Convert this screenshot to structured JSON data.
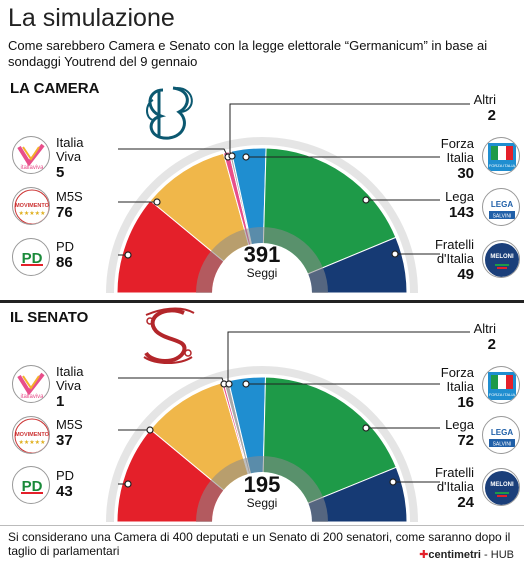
{
  "header": {
    "title": "La simulazione",
    "subtitle": "Come sarebbero Camera e Senato con la legge elettorale “Germanicum” in base ai sondaggi Youtrend del 9 gennaio"
  },
  "footer": {
    "note": "Si considerano una Camera di 400 deputati e un Senato di 200 senatori, come saranno dopo il taglio di parlamentari",
    "brand_main": "centimetri",
    "brand_sep": " - ",
    "brand_hub": "HUB"
  },
  "colors": {
    "pd": "#e4202a",
    "m5s": "#f0b74a",
    "iv": "#e84e8a",
    "altri": "#a9a9a9",
    "fi": "#1f8ed0",
    "lega": "#1e9a48",
    "fdi": "#163a74",
    "inner": "#8a8a8a",
    "ring": "#e5e5e5"
  },
  "chart_data": [
    {
      "type": "pie",
      "title": "LA CAMERA",
      "total_label": "391",
      "total_unit": "Seggi",
      "slices": [
        {
          "key": "pd",
          "label": "PD",
          "value": 86
        },
        {
          "key": "m5s",
          "label": "M5S",
          "value": 76
        },
        {
          "key": "iv",
          "label": "Italia Viva",
          "value": 5
        },
        {
          "key": "altri",
          "label": "Altri",
          "value": 2
        },
        {
          "key": "fi",
          "label": "Forza Italia",
          "value": 30
        },
        {
          "key": "lega",
          "label": "Lega",
          "value": 143
        },
        {
          "key": "fdi",
          "label": "Fratelli d'Italia",
          "value": 49
        }
      ]
    },
    {
      "type": "pie",
      "title": "IL SENATO",
      "total_label": "195",
      "total_unit": "Seggi",
      "slices": [
        {
          "key": "pd",
          "label": "PD",
          "value": 43
        },
        {
          "key": "m5s",
          "label": "M5S",
          "value": 37
        },
        {
          "key": "iv",
          "label": "Italia Viva",
          "value": 1
        },
        {
          "key": "altri",
          "label": "Altri",
          "value": 2
        },
        {
          "key": "fi",
          "label": "Forza Italia",
          "value": 16
        },
        {
          "key": "lega",
          "label": "Lega",
          "value": 72
        },
        {
          "key": "fdi",
          "label": "Fratelli d'Italia",
          "value": 24
        }
      ]
    }
  ],
  "camera": {
    "iv_l1": "Italia",
    "iv_l2": "Viva",
    "iv_v": "5",
    "m5s_l": "M5S",
    "m5s_v": "76",
    "pd_l": "PD",
    "pd_v": "86",
    "altri_l": "Altri",
    "altri_v": "2",
    "fi_l1": "Forza",
    "fi_l2": "Italia",
    "fi_v": "30",
    "lega_l": "Lega",
    "lega_v": "143",
    "fdi_l1": "Fratelli",
    "fdi_l2": "d'Italia",
    "fdi_v": "49"
  },
  "senato": {
    "iv_l1": "Italia",
    "iv_l2": "Viva",
    "iv_v": "1",
    "m5s_l": "M5S",
    "m5s_v": "37",
    "pd_l": "PD",
    "pd_v": "43",
    "altri_l": "Altri",
    "altri_v": "2",
    "fi_l1": "Forza",
    "fi_l2": "Italia",
    "fi_v": "16",
    "lega_l": "Lega",
    "lega_v": "72",
    "fdi_l1": "Fratelli",
    "fdi_l2": "d'Italia",
    "fdi_v": "24"
  },
  "logos": {
    "iv": "italiaviva",
    "m5s": "MOVIMENTO",
    "pd": "PD",
    "fi": "FORZA ITALIA",
    "lega": "LEGA",
    "lega_sub": "SALVINI",
    "fdi": "MELONI"
  }
}
